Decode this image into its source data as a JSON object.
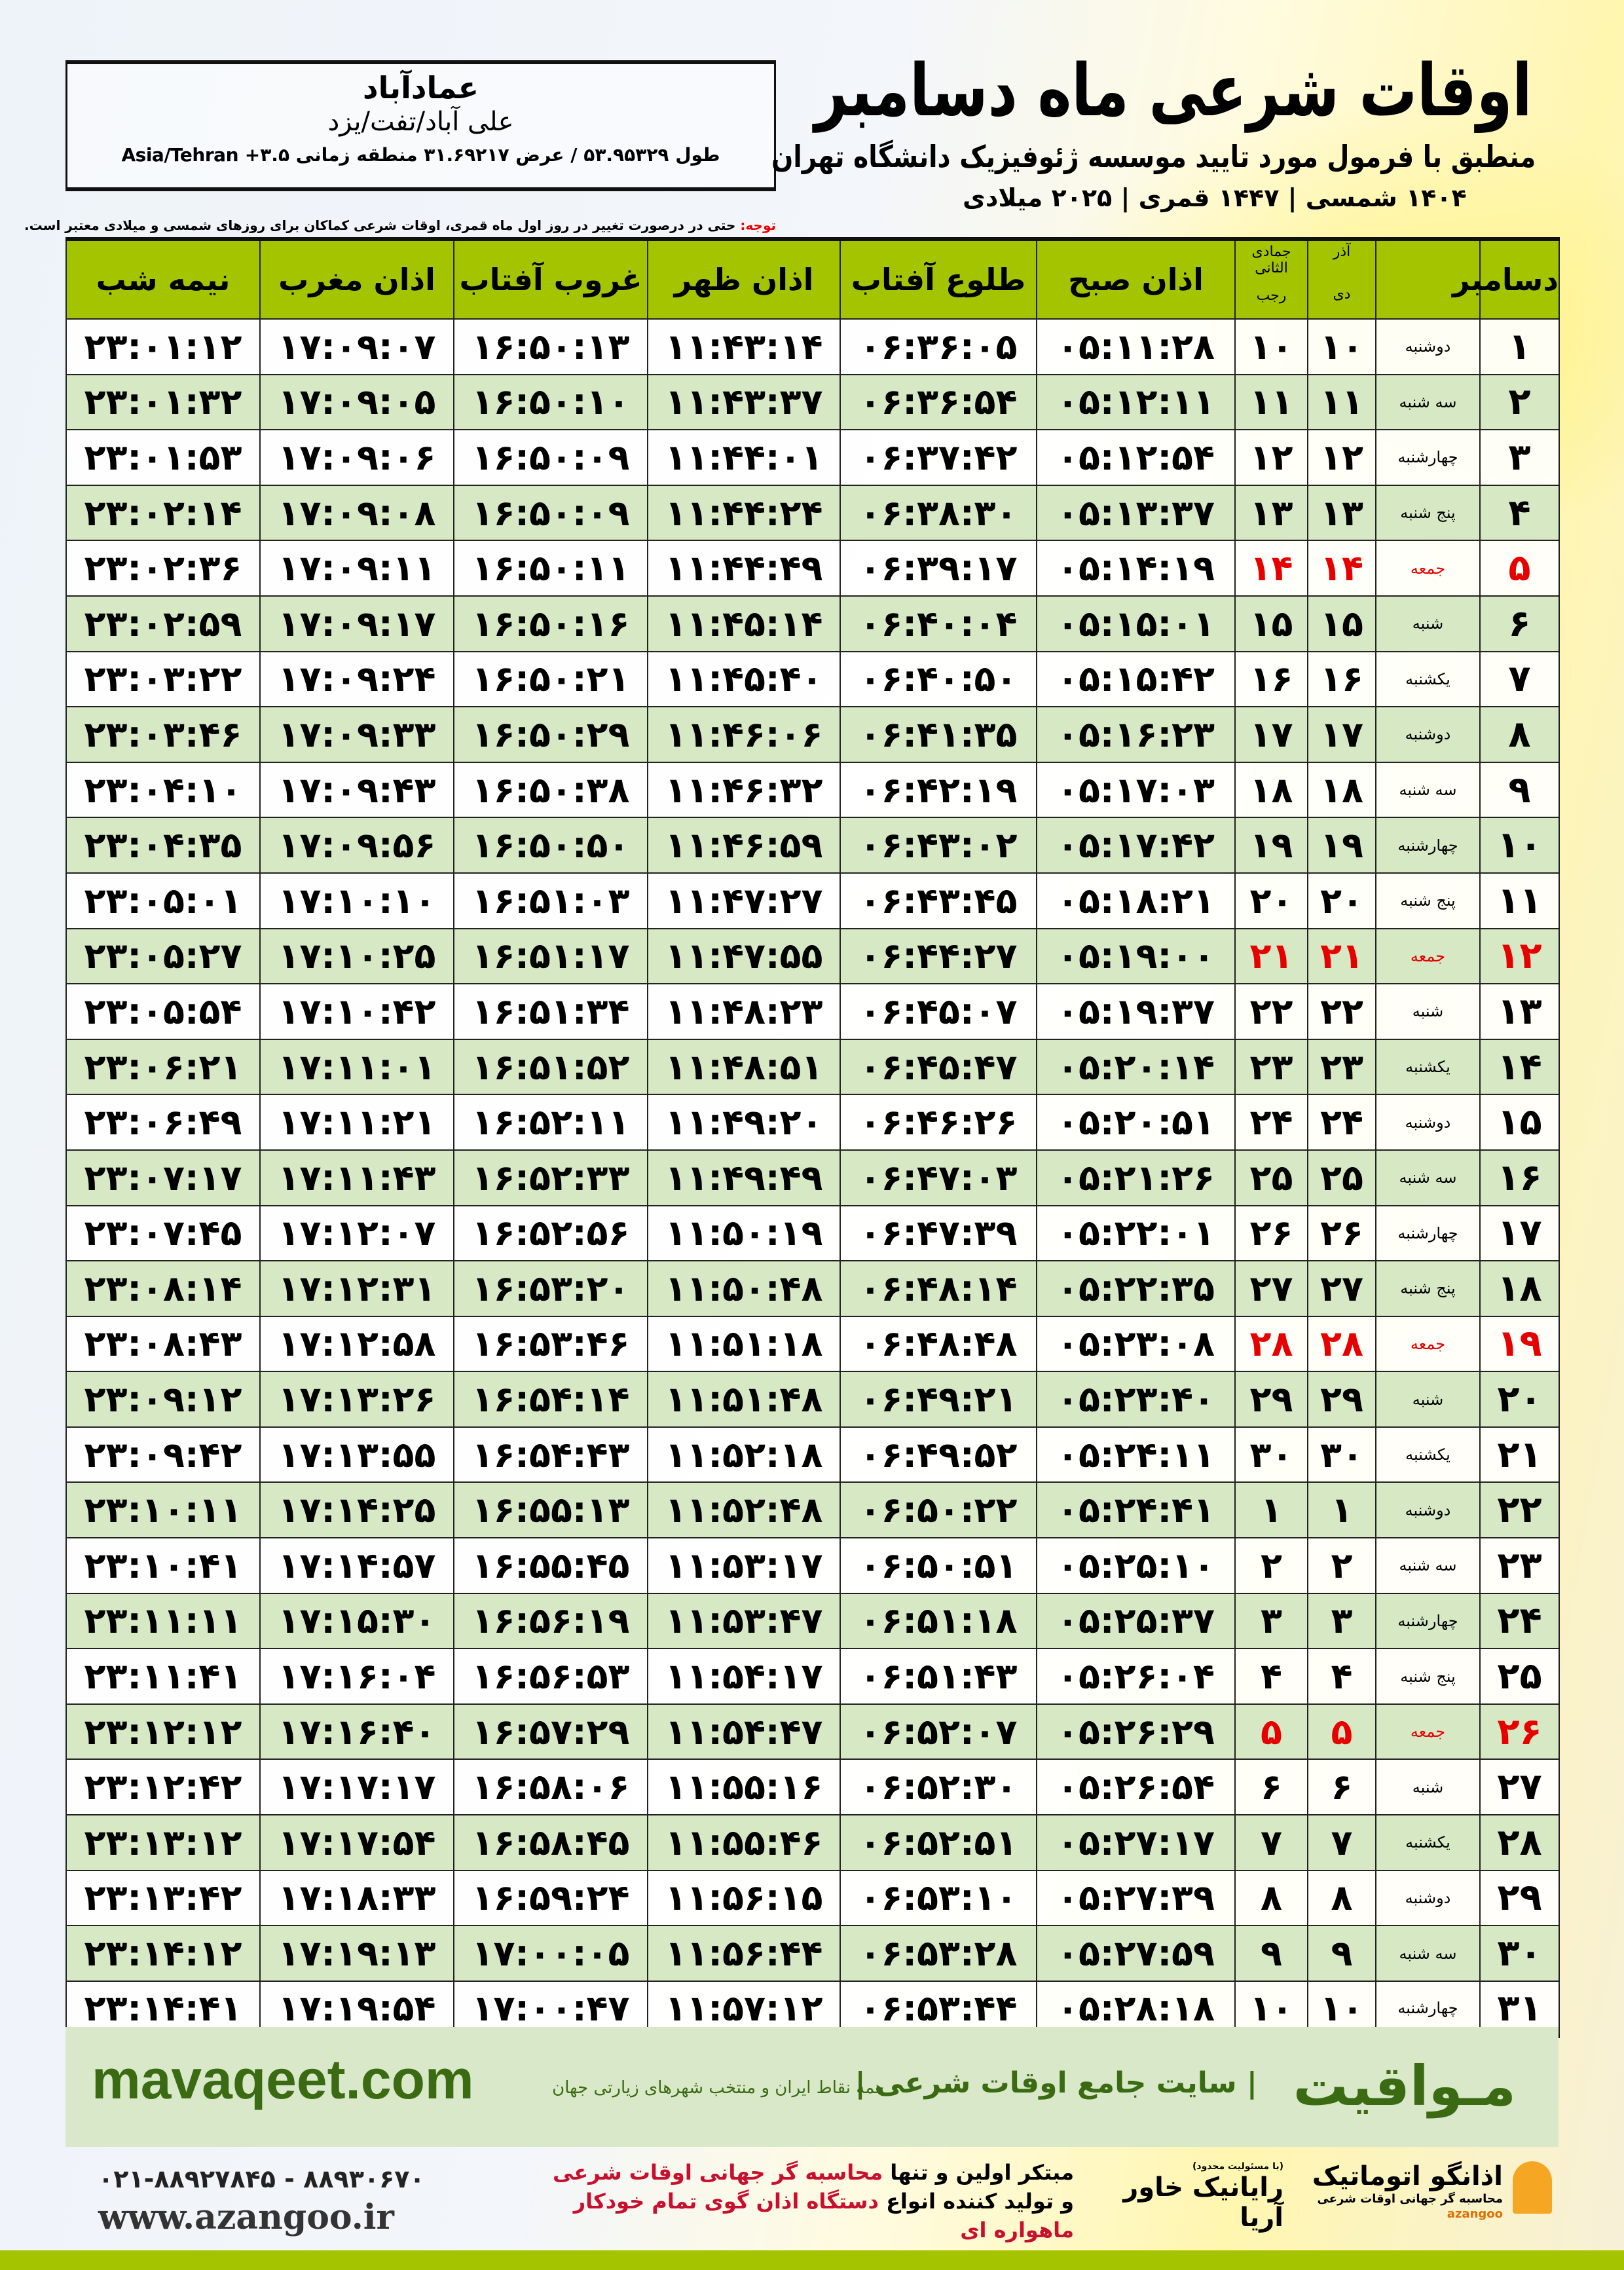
{
  "header": {
    "city": "عمادآباد",
    "region": "علی آباد/تفت/یزد",
    "coords": "طول ۵۳.۹۵۳۲۹ / عرض ۳۱.۶۹۲۱۷ منطقه زمانی ۳.۵+ Asia/Tehran",
    "title": "اوقات شرعی ماه دسامبر",
    "subtitle": "منطبق با فرمول مورد تایید موسسه ژئوفیزیک دانشگاه تهران",
    "dates": "۱۴۰۴ شمسی | ۱۴۴۷ قمری | ۲۰۲۵ میلادی",
    "note_label": "توجه:",
    "note_text": " حتی در درصورت تغییر در روز اول ماه قمری، اوقات شرعی کماکان برای روزهای شمسی و میلادی معتبر است."
  },
  "table": {
    "columns": {
      "month": "دسامبر",
      "shamsi_top": "آذر",
      "shamsi_bottom": "دی",
      "qamari_top": "جمادی الثانی",
      "qamari_bottom": "رجب",
      "fajr": "اذان صبح",
      "sunrise": "طلوع آفتاب",
      "dhuhr": "اذان ظهر",
      "sunset": "غروب آفتاب",
      "maghrib": "اذان مغرب",
      "midnight": "نیمه شب"
    },
    "holiday_color": "#e60000",
    "rows": [
      {
        "c": [
          "۱",
          "دوشنبه",
          "۱۰",
          "۱۰",
          "۰۵:۱۱:۲۸",
          "۰۶:۳۶:۰۵",
          "۱۱:۴۳:۱۴",
          "۱۶:۵۰:۱۳",
          "۱۷:۰۹:۰۷",
          "۲۳:۰۱:۱۲"
        ]
      },
      {
        "c": [
          "۲",
          "سه شنبه",
          "۱۱",
          "۱۱",
          "۰۵:۱۲:۱۱",
          "۰۶:۳۶:۵۴",
          "۱۱:۴۳:۳۷",
          "۱۶:۵۰:۱۰",
          "۱۷:۰۹:۰۵",
          "۲۳:۰۱:۳۲"
        ]
      },
      {
        "c": [
          "۳",
          "چهارشنبه",
          "۱۲",
          "۱۲",
          "۰۵:۱۲:۵۴",
          "۰۶:۳۷:۴۲",
          "۱۱:۴۴:۰۱",
          "۱۶:۵۰:۰۹",
          "۱۷:۰۹:۰۶",
          "۲۳:۰۱:۵۳"
        ]
      },
      {
        "c": [
          "۴",
          "پنج شنبه",
          "۱۳",
          "۱۳",
          "۰۵:۱۳:۳۷",
          "۰۶:۳۸:۳۰",
          "۱۱:۴۴:۲۴",
          "۱۶:۵۰:۰۹",
          "۱۷:۰۹:۰۸",
          "۲۳:۰۲:۱۴"
        ]
      },
      {
        "c": [
          "۵",
          "جمعه",
          "۱۴",
          "۱۴",
          "۰۵:۱۴:۱۹",
          "۰۶:۳۹:۱۷",
          "۱۱:۴۴:۴۹",
          "۱۶:۵۰:۱۱",
          "۱۷:۰۹:۱۱",
          "۲۳:۰۲:۳۶"
        ],
        "holiday": true
      },
      {
        "c": [
          "۶",
          "شنبه",
          "۱۵",
          "۱۵",
          "۰۵:۱۵:۰۱",
          "۰۶:۴۰:۰۴",
          "۱۱:۴۵:۱۴",
          "۱۶:۵۰:۱۶",
          "۱۷:۰۹:۱۷",
          "۲۳:۰۲:۵۹"
        ]
      },
      {
        "c": [
          "۷",
          "یکشنبه",
          "۱۶",
          "۱۶",
          "۰۵:۱۵:۴۲",
          "۰۶:۴۰:۵۰",
          "۱۱:۴۵:۴۰",
          "۱۶:۵۰:۲۱",
          "۱۷:۰۹:۲۴",
          "۲۳:۰۳:۲۲"
        ]
      },
      {
        "c": [
          "۸",
          "دوشنبه",
          "۱۷",
          "۱۷",
          "۰۵:۱۶:۲۳",
          "۰۶:۴۱:۳۵",
          "۱۱:۴۶:۰۶",
          "۱۶:۵۰:۲۹",
          "۱۷:۰۹:۳۳",
          "۲۳:۰۳:۴۶"
        ]
      },
      {
        "c": [
          "۹",
          "سه شنبه",
          "۱۸",
          "۱۸",
          "۰۵:۱۷:۰۳",
          "۰۶:۴۲:۱۹",
          "۱۱:۴۶:۳۲",
          "۱۶:۵۰:۳۸",
          "۱۷:۰۹:۴۳",
          "۲۳:۰۴:۱۰"
        ]
      },
      {
        "c": [
          "۱۰",
          "چهارشنبه",
          "۱۹",
          "۱۹",
          "۰۵:۱۷:۴۲",
          "۰۶:۴۳:۰۲",
          "۱۱:۴۶:۵۹",
          "۱۶:۵۰:۵۰",
          "۱۷:۰۹:۵۶",
          "۲۳:۰۴:۳۵"
        ]
      },
      {
        "c": [
          "۱۱",
          "پنج شنبه",
          "۲۰",
          "۲۰",
          "۰۵:۱۸:۲۱",
          "۰۶:۴۳:۴۵",
          "۱۱:۴۷:۲۷",
          "۱۶:۵۱:۰۳",
          "۱۷:۱۰:۱۰",
          "۲۳:۰۵:۰۱"
        ]
      },
      {
        "c": [
          "۱۲",
          "جمعه",
          "۲۱",
          "۲۱",
          "۰۵:۱۹:۰۰",
          "۰۶:۴۴:۲۷",
          "۱۱:۴۷:۵۵",
          "۱۶:۵۱:۱۷",
          "۱۷:۱۰:۲۵",
          "۲۳:۰۵:۲۷"
        ],
        "holiday": true
      },
      {
        "c": [
          "۱۳",
          "شنبه",
          "۲۲",
          "۲۲",
          "۰۵:۱۹:۳۷",
          "۰۶:۴۵:۰۷",
          "۱۱:۴۸:۲۳",
          "۱۶:۵۱:۳۴",
          "۱۷:۱۰:۴۲",
          "۲۳:۰۵:۵۴"
        ]
      },
      {
        "c": [
          "۱۴",
          "یکشنبه",
          "۲۳",
          "۲۳",
          "۰۵:۲۰:۱۴",
          "۰۶:۴۵:۴۷",
          "۱۱:۴۸:۵۱",
          "۱۶:۵۱:۵۲",
          "۱۷:۱۱:۰۱",
          "۲۳:۰۶:۲۱"
        ]
      },
      {
        "c": [
          "۱۵",
          "دوشنبه",
          "۲۴",
          "۲۴",
          "۰۵:۲۰:۵۱",
          "۰۶:۴۶:۲۶",
          "۱۱:۴۹:۲۰",
          "۱۶:۵۲:۱۱",
          "۱۷:۱۱:۲۱",
          "۲۳:۰۶:۴۹"
        ]
      },
      {
        "c": [
          "۱۶",
          "سه شنبه",
          "۲۵",
          "۲۵",
          "۰۵:۲۱:۲۶",
          "۰۶:۴۷:۰۳",
          "۱۱:۴۹:۴۹",
          "۱۶:۵۲:۳۳",
          "۱۷:۱۱:۴۳",
          "۲۳:۰۷:۱۷"
        ]
      },
      {
        "c": [
          "۱۷",
          "چهارشنبه",
          "۲۶",
          "۲۶",
          "۰۵:۲۲:۰۱",
          "۰۶:۴۷:۳۹",
          "۱۱:۵۰:۱۹",
          "۱۶:۵۲:۵۶",
          "۱۷:۱۲:۰۷",
          "۲۳:۰۷:۴۵"
        ]
      },
      {
        "c": [
          "۱۸",
          "پنج شنبه",
          "۲۷",
          "۲۷",
          "۰۵:۲۲:۳۵",
          "۰۶:۴۸:۱۴",
          "۱۱:۵۰:۴۸",
          "۱۶:۵۳:۲۰",
          "۱۷:۱۲:۳۱",
          "۲۳:۰۸:۱۴"
        ]
      },
      {
        "c": [
          "۱۹",
          "جمعه",
          "۲۸",
          "۲۸",
          "۰۵:۲۳:۰۸",
          "۰۶:۴۸:۴۸",
          "۱۱:۵۱:۱۸",
          "۱۶:۵۳:۴۶",
          "۱۷:۱۲:۵۸",
          "۲۳:۰۸:۴۳"
        ],
        "holiday": true
      },
      {
        "c": [
          "۲۰",
          "شنبه",
          "۲۹",
          "۲۹",
          "۰۵:۲۳:۴۰",
          "۰۶:۴۹:۲۱",
          "۱۱:۵۱:۴۸",
          "۱۶:۵۴:۱۴",
          "۱۷:۱۳:۲۶",
          "۲۳:۰۹:۱۲"
        ]
      },
      {
        "c": [
          "۲۱",
          "یکشنبه",
          "۳۰",
          "۳۰",
          "۰۵:۲۴:۱۱",
          "۰۶:۴۹:۵۲",
          "۱۱:۵۲:۱۸",
          "۱۶:۵۴:۴۳",
          "۱۷:۱۳:۵۵",
          "۲۳:۰۹:۴۲"
        ]
      },
      {
        "c": [
          "۲۲",
          "دوشنبه",
          "۱",
          "۱",
          "۰۵:۲۴:۴۱",
          "۰۶:۵۰:۲۲",
          "۱۱:۵۲:۴۸",
          "۱۶:۵۵:۱۳",
          "۱۷:۱۴:۲۵",
          "۲۳:۱۰:۱۱"
        ]
      },
      {
        "c": [
          "۲۳",
          "سه شنبه",
          "۲",
          "۲",
          "۰۵:۲۵:۱۰",
          "۰۶:۵۰:۵۱",
          "۱۱:۵۳:۱۷",
          "۱۶:۵۵:۴۵",
          "۱۷:۱۴:۵۷",
          "۲۳:۱۰:۴۱"
        ]
      },
      {
        "c": [
          "۲۴",
          "چهارشنبه",
          "۳",
          "۳",
          "۰۵:۲۵:۳۷",
          "۰۶:۵۱:۱۸",
          "۱۱:۵۳:۴۷",
          "۱۶:۵۶:۱۹",
          "۱۷:۱۵:۳۰",
          "۲۳:۱۱:۱۱"
        ]
      },
      {
        "c": [
          "۲۵",
          "پنج شنبه",
          "۴",
          "۴",
          "۰۵:۲۶:۰۴",
          "۰۶:۵۱:۴۳",
          "۱۱:۵۴:۱۷",
          "۱۶:۵۶:۵۳",
          "۱۷:۱۶:۰۴",
          "۲۳:۱۱:۴۱"
        ]
      },
      {
        "c": [
          "۲۶",
          "جمعه",
          "۵",
          "۵",
          "۰۵:۲۶:۲۹",
          "۰۶:۵۲:۰۷",
          "۱۱:۵۴:۴۷",
          "۱۶:۵۷:۲۹",
          "۱۷:۱۶:۴۰",
          "۲۳:۱۲:۱۲"
        ],
        "holiday": true
      },
      {
        "c": [
          "۲۷",
          "شنبه",
          "۶",
          "۶",
          "۰۵:۲۶:۵۴",
          "۰۶:۵۲:۳۰",
          "۱۱:۵۵:۱۶",
          "۱۶:۵۸:۰۶",
          "۱۷:۱۷:۱۷",
          "۲۳:۱۲:۴۲"
        ]
      },
      {
        "c": [
          "۲۸",
          "یکشنبه",
          "۷",
          "۷",
          "۰۵:۲۷:۱۷",
          "۰۶:۵۲:۵۱",
          "۱۱:۵۵:۴۶",
          "۱۶:۵۸:۴۵",
          "۱۷:۱۷:۵۴",
          "۲۳:۱۳:۱۲"
        ]
      },
      {
        "c": [
          "۲۹",
          "دوشنبه",
          "۸",
          "۸",
          "۰۵:۲۷:۳۹",
          "۰۶:۵۳:۱۰",
          "۱۱:۵۶:۱۵",
          "۱۶:۵۹:۲۴",
          "۱۷:۱۸:۳۳",
          "۲۳:۱۳:۴۲"
        ]
      },
      {
        "c": [
          "۳۰",
          "سه شنبه",
          "۹",
          "۹",
          "۰۵:۲۷:۵۹",
          "۰۶:۵۳:۲۸",
          "۱۱:۵۶:۴۴",
          "۱۷:۰۰:۰۵",
          "۱۷:۱۹:۱۳",
          "۲۳:۱۴:۱۲"
        ]
      },
      {
        "c": [
          "۳۱",
          "چهارشنبه",
          "۱۰",
          "۱۰",
          "۰۵:۲۸:۱۸",
          "۰۶:۵۳:۴۴",
          "۱۱:۵۷:۱۲",
          "۱۷:۰۰:۴۷",
          "۱۷:۱۹:۵۴",
          "۲۳:۱۴:۴۱"
        ]
      }
    ]
  },
  "footer": {
    "brand": "مـواقیت",
    "tagline": "| سایت جامع اوقات شرعی |",
    "tagline2": "همه نقاط ایران و منتخب شهرهای زیارتی جهان",
    "site": "mavaqeet.com",
    "phone": "۰۲۱-۸۸۹۲۷۸۴۵ - ۸۸۹۳۰۶۷۰",
    "web": "www.azangoo.ir",
    "ad_line1_a": "مبتکر اولین و تنها ",
    "ad_line1_b": "محاسبه گر جهانی اوقات شرعی",
    "ad_line2_a": "و تولید کننده انواع ",
    "ad_line2_b": "دستگاه اذان گوی تمام خودکار ماهواره ای",
    "logo1_small": "(با مسئولیت محدود)",
    "logo1": "رایانیک خاور آریا",
    "logo2": "اذانگو اتوماتیک",
    "logo2_sub": "محاسبه گر جهانی اوقات شرعی",
    "logo2_latin": "azangoo",
    "accent_green": "#a5c400",
    "brand_green": "#3a6b12"
  }
}
